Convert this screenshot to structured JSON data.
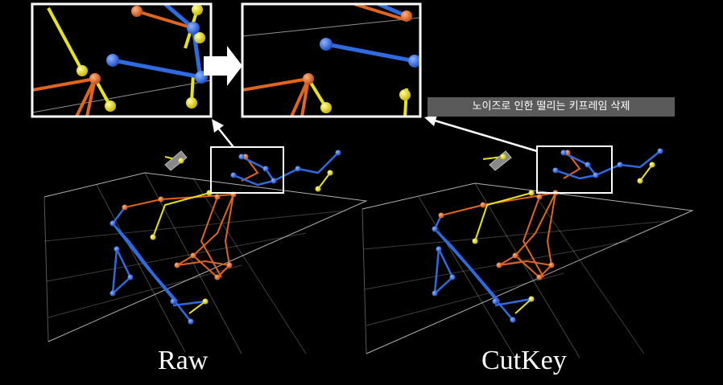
{
  "labels": {
    "raw": "Raw",
    "cutkey": "CutKey"
  },
  "annotation": {
    "text": "노이즈로 인한 떨리는 키프레임 삭제"
  },
  "colors": {
    "background": "#000000",
    "grid": "#cfcfcf",
    "joint_blue": "#2f6be0",
    "joint_yellow": "#e8e21a",
    "joint_orange": "#e0651f",
    "frame": "#ffffff",
    "annotation_bg": "#5a5a5a"
  }
}
